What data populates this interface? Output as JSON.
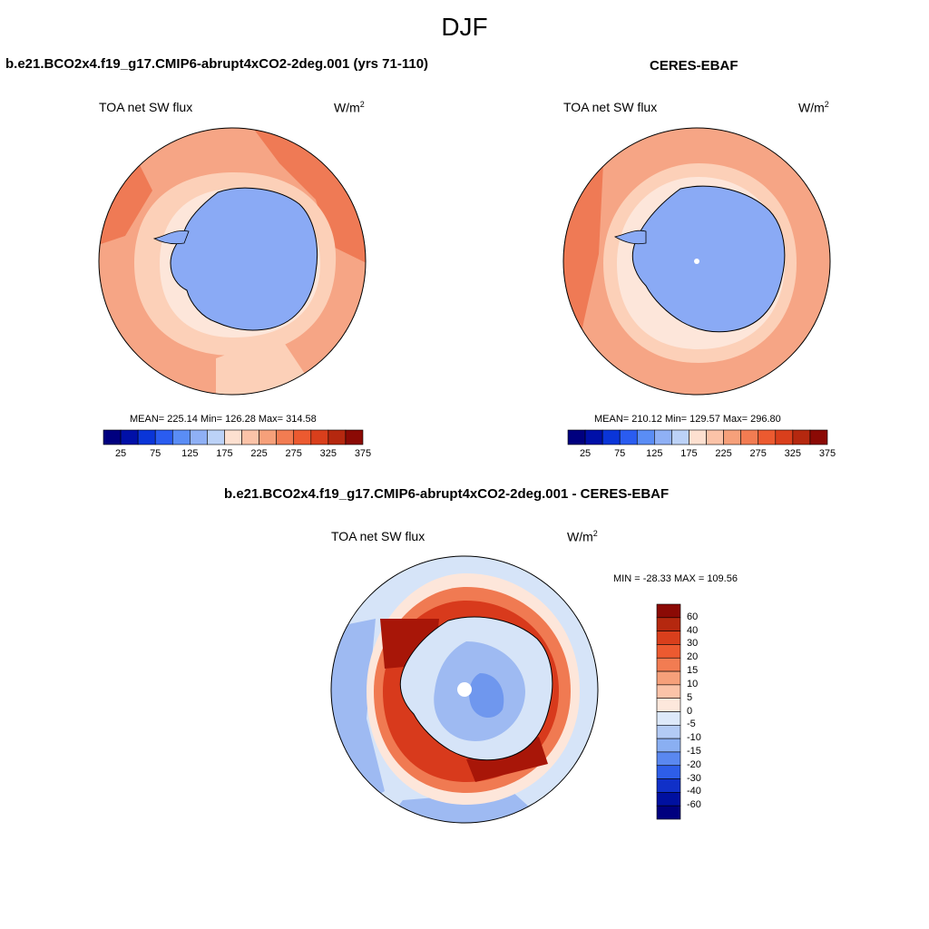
{
  "figure": {
    "title": "DJF"
  },
  "panels": [
    {
      "title": "b.e21.BCO2x4.f19_g17.CMIP6-abrupt4xCO2-2deg.001 (yrs 71-110)",
      "variable": "TOA net SW flux",
      "units_base": "W/m",
      "units_sup": "2",
      "stats": "MEAN= 225.14  Min= 126.28  Max= 314.58",
      "colorbar": {
        "colors": [
          "#00007f",
          "#0010a8",
          "#0a35d8",
          "#2a5cf0",
          "#5a8df5",
          "#8fb0f5",
          "#bcd2f7",
          "#fde0d0",
          "#fbc3a8",
          "#f6a07a",
          "#f27c52",
          "#ec5a30",
          "#d93f1c",
          "#b5280f",
          "#8b0a05"
        ],
        "labels": [
          "25",
          "75",
          "125",
          "175",
          "225",
          "275",
          "325",
          "375"
        ]
      }
    },
    {
      "title": "CERES-EBAF",
      "variable": "TOA net SW flux",
      "units_base": "W/m",
      "units_sup": "2",
      "stats": "MEAN= 210.12  Min= 129.57  Max= 296.80",
      "colorbar": {
        "colors": [
          "#00007f",
          "#0010a8",
          "#0a35d8",
          "#2a5cf0",
          "#5a8df5",
          "#8fb0f5",
          "#bcd2f7",
          "#fde0d0",
          "#fbc3a8",
          "#f6a07a",
          "#f27c52",
          "#ec5a30",
          "#d93f1c",
          "#b5280f",
          "#8b0a05"
        ],
        "labels": [
          "25",
          "75",
          "125",
          "175",
          "225",
          "275",
          "325",
          "375"
        ]
      }
    },
    {
      "title": "b.e21.BCO2x4.f19_g17.CMIP6-abrupt4xCO2-2deg.001 - CERES-EBAF",
      "variable": "TOA net SW flux",
      "units_base": "W/m",
      "units_sup": "2",
      "stats": "MIN = -28.33 MAX = 109.56",
      "colorbar": {
        "colors": [
          "#8b0a05",
          "#b5280f",
          "#d93f1c",
          "#ec5a30",
          "#f27c52",
          "#f6a07a",
          "#fbc3a8",
          "#fde8dc",
          "#dde9fa",
          "#b3cbf5",
          "#8aaff2",
          "#5a88f0",
          "#2e5ee8",
          "#1030c8",
          "#0010a0",
          "#00007f"
        ],
        "labels": [
          "60",
          "40",
          "30",
          "20",
          "15",
          "10",
          "5",
          "0",
          "-5",
          "-10",
          "-15",
          "-20",
          "-30",
          "-40",
          "-60"
        ]
      }
    }
  ],
  "map_colors": {
    "ice_model": "#8aaaf5",
    "ice_obs": "#8aaaf5",
    "ocean_warm": "#f6a585",
    "ocean_light": "#fcd0b8",
    "ocean_pale": "#fde6da",
    "ocean_strong": "#ef7a55",
    "diff_dark_red": "#a81608",
    "diff_red": "#d83a1c",
    "diff_orange": "#f07a52",
    "diff_pale": "#fde6da",
    "diff_blue_pale": "#d6e4f8",
    "diff_blue": "#9ebaf2",
    "diff_blue_mid": "#6f97ee"
  }
}
